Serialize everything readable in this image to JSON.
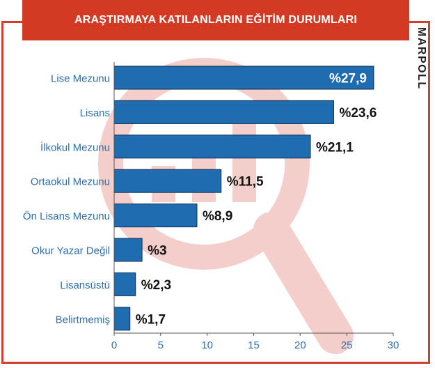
{
  "header": {
    "title": "ARAŞTIRMAYA KATILANLARIN EĞİTİM DURUMLARI"
  },
  "brand": {
    "logo_text": "MARPOLL"
  },
  "colors": {
    "accent": "#d43a23",
    "bar": "#1f6cb0",
    "watermark": "#f2c8c3",
    "label": "#2e6fae"
  },
  "icons": {
    "watermark": "magnifier-chart-icon"
  },
  "chart_data": {
    "type": "bar",
    "orientation": "horizontal",
    "title": "ARAŞTIRMAYA KATILANLARIN EĞİTİM DURUMLARI",
    "categories": [
      "Lise Mezunu",
      "Lisans",
      "İlkokul Mezunu",
      "Ortaokul Mezunu",
      "Ön Lisans Mezunu",
      "Okur Yazar Değil",
      "Lisansüstü",
      "Belirtmemiş"
    ],
    "values": [
      27.9,
      23.6,
      21.1,
      11.5,
      8.9,
      3,
      2.3,
      1.7
    ],
    "data_labels": [
      "%27,9",
      "%23,6",
      "%21,1",
      "%11,5",
      "%8,9",
      "%3",
      "%2,3",
      "%1,7"
    ],
    "xlim": [
      0,
      30
    ],
    "xticks": [
      0,
      5,
      10,
      15,
      20,
      25,
      30
    ],
    "xlabel": "",
    "ylabel": "",
    "grid": false,
    "legend": "none"
  }
}
